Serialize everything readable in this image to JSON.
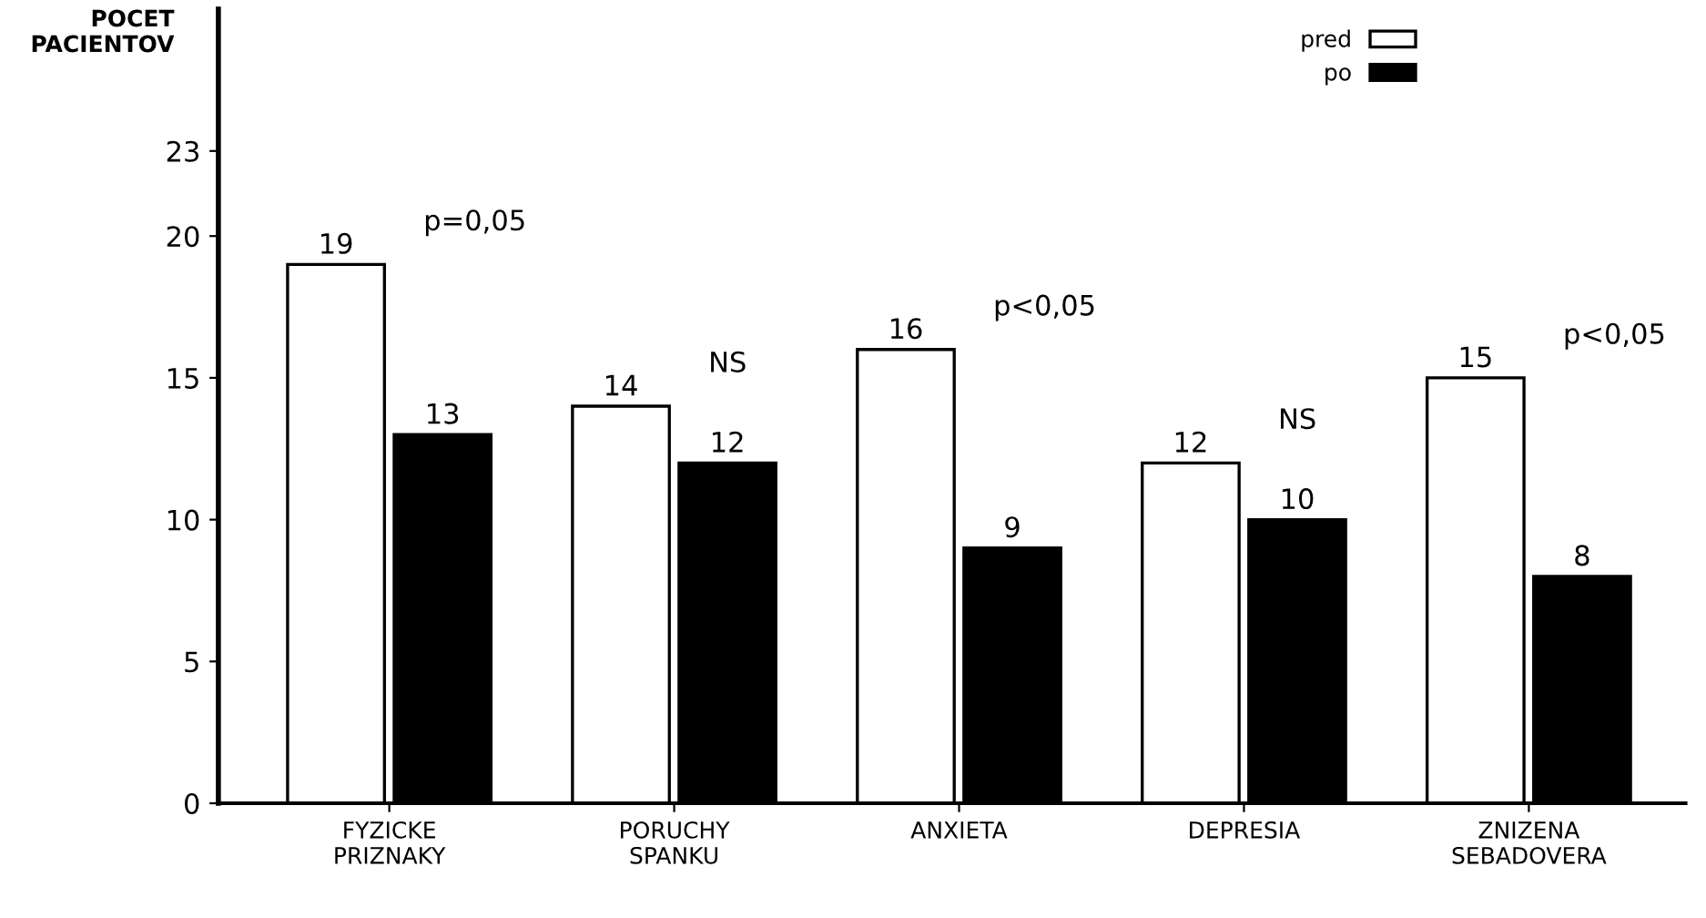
{
  "chart_data": {
    "type": "bar",
    "ylabel": "POCET\nPACIENTOV",
    "categories": [
      "FYZICKE\nPRIZNAKY",
      "PORUCHY\nSPANKU",
      "ANXIETA",
      "DEPRESIA",
      "ZNIZENA\nSEBADOVERA"
    ],
    "series": [
      {
        "name": "pred",
        "color": "#ffffff",
        "values": [
          19,
          14,
          16,
          12,
          15
        ]
      },
      {
        "name": "po",
        "color": "#000000",
        "values": [
          13,
          12,
          9,
          10,
          8
        ]
      }
    ],
    "ylim": [
      0,
      28
    ],
    "yticks": [
      0,
      5,
      10,
      15,
      20,
      23
    ],
    "data_labels": true,
    "grid": false,
    "legend": "top right",
    "annotations": [
      "p=0,05",
      "NS",
      "p<0,05",
      "NS",
      "p<0,05"
    ]
  }
}
